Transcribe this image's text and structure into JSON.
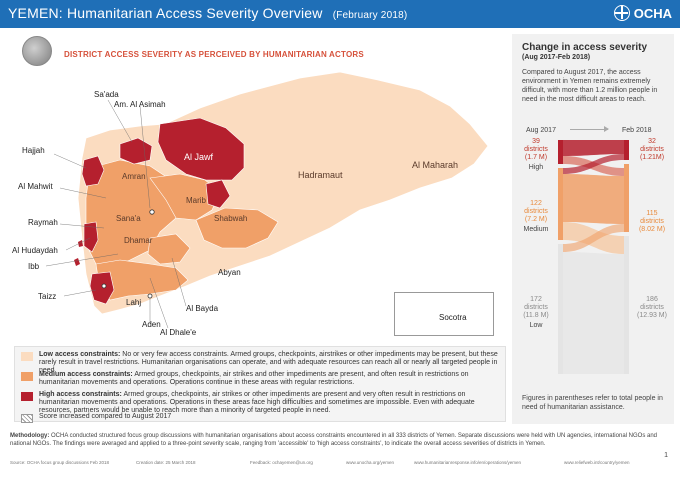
{
  "header": {
    "country": "YEMEN:",
    "title": "Humanitarian Access Severity Overview",
    "date": "(February 2018)",
    "logo_text": "OCHA",
    "bg_color": "#1f6fb7"
  },
  "map": {
    "title": "DISTRICT ACCESS SEVERITY AS PERCEIVED BY HUMANITARIAN ACTORS",
    "cities": [
      "Sa'ada",
      "Am. Al Asimah",
      "Hajjah",
      "Al Mahwit",
      "Raymah",
      "Al Hudaydah",
      "Ibb",
      "Taizz",
      "Lahj",
      "Aden",
      "Al Dhale'e",
      "Al Bayda",
      "Abyan"
    ],
    "regions": [
      "Al Jawf",
      "Amran",
      "Marib",
      "Sana'a",
      "Shabwah",
      "Dhamar",
      "Hadramaut",
      "Al Maharah"
    ],
    "inset_label": "Socotra",
    "colors": {
      "low": "#fbdcc0",
      "medium": "#f0a068",
      "high": "#b5202e",
      "border": "#ffffff"
    }
  },
  "sidebar": {
    "title": "Change in access severity",
    "subtitle": "(Aug 2017-Feb 2018)",
    "description": "Compared to August 2017, the access environment in Yemen remains extremely difficult, with more than 1.2 million people in need in the most difficult areas to reach.",
    "from_label": "Aug 2017",
    "to_label": "Feb 2018",
    "aug": [
      {
        "level": "High",
        "districts": "39",
        "unit": "districts",
        "people": "(1.7 M)"
      },
      {
        "level": "Medium",
        "districts": "122",
        "unit": "districts",
        "people": "(7.2 M)"
      },
      {
        "level": "Low",
        "districts": "172",
        "unit": "districts",
        "people": "(11.8 M)"
      }
    ],
    "feb": [
      {
        "districts": "32",
        "unit": "districts",
        "people": "(1.21M)"
      },
      {
        "districts": "115",
        "unit": "districts",
        "people": "(8.02 M)"
      },
      {
        "districts": "186",
        "unit": "districts",
        "people": "(12.93 M)"
      }
    ],
    "footnote": "Figures in parentheses refer to total people in need of humanitarian assistance."
  },
  "legend": {
    "low": {
      "label": "Low access constraints:",
      "text": "No or very few access constraints. Armed groups, checkpoints, airstrikes or other impediments may be present, but these rarely result in travel restrictions. Humanitarian organisations can operate, and with adequate resources can reach all or nearly all targeted people in need."
    },
    "medium": {
      "label": "Medium access constraints:",
      "text": "Armed groups, checkpoints, air strikes and other impediments are present, and often result in restrictions on humanitarian movements and operations. Operations continue in these areas with regular restrictions."
    },
    "high": {
      "label": "High access constraints:",
      "text": "Armed groups, checkpoints, air strikes or other impediments are present and very often result in restrictions on humanitarian movements and operations. Operations in these areas face high difficulties and sometimes are impossible. Even with adequate resources, partners would be unable to reach more than a minority of targeted people in need."
    },
    "hatch": {
      "text": "Score increased compared to August 2017"
    }
  },
  "methodology": {
    "label": "Methodology:",
    "text": "OCHA conducted structured focus group discussions with humanitarian organisations about access constraints encountered in all 333 districts of Yemen. Separate discussions were held with UN agencies, international NGOs and national NGOs. The findings were averaged and applied to a three-point severity scale, ranging from 'accessible' to 'high access constraints', to indicate the overall access severities of districts in Yemen."
  },
  "footer": {
    "source": "Source: OCHA focus group discussions Feb 2018",
    "creation": "Creation date: 25 March 2018",
    "feedback": "Feedback: ochayemen@un.org",
    "url1": "www.unocha.org/yemen",
    "url2": "www.humanitarianresponse.info/en/operations/yemen",
    "url3": "www.reliefweb.int/country/yemen",
    "page": "1"
  }
}
